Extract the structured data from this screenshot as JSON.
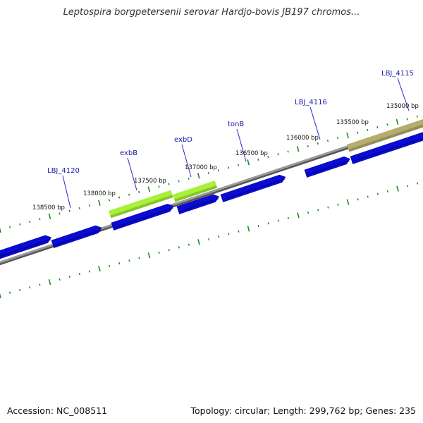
{
  "title": "Leptospira borgpetersenii serovar Hardjo-bovis JB197 chromos...",
  "footer": {
    "accession": "Accession: NC_008511",
    "summary": "Topology: circular; Length: 299,762 bp; Genes: 235"
  },
  "colors": {
    "backbone": "#808080",
    "cds": "#0b0bd6",
    "gene_green": "#a8f03a",
    "gene_olive": "#b5ad6c",
    "tick": "#1a8a1a",
    "gene_label": "#1a1aa8"
  },
  "bp_labels": [
    {
      "text": "138500 bp",
      "bp": 138500
    },
    {
      "text": "138000 bp",
      "bp": 138000
    },
    {
      "text": "137500 bp",
      "bp": 137500
    },
    {
      "text": "137000 bp",
      "bp": 137000
    },
    {
      "text": "136500 bp",
      "bp": 136500
    },
    {
      "text": "136000 bp",
      "bp": 136000
    },
    {
      "text": "135500 bp",
      "bp": 135500
    },
    {
      "text": "135000 bp",
      "bp": 135000
    }
  ],
  "genes": [
    {
      "name": "LBJ_4120",
      "highlight": "none"
    },
    {
      "name": "exbB",
      "highlight": "green"
    },
    {
      "name": "exbD",
      "highlight": "green"
    },
    {
      "name": "tonB",
      "highlight": "none"
    },
    {
      "name": "LBJ_4116",
      "highlight": "none"
    },
    {
      "name": "LBJ_4115",
      "highlight": "olive"
    }
  ]
}
